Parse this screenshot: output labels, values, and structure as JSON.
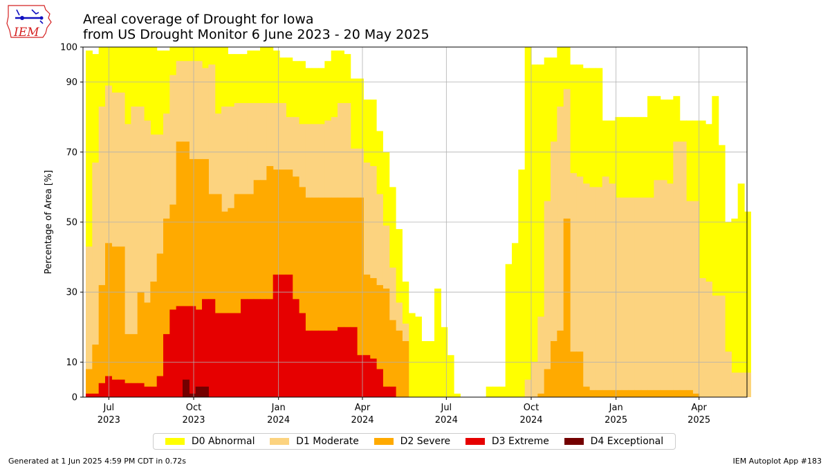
{
  "title": {
    "line1": "Areal coverage of Drought for Iowa",
    "line2": "from US Drought Monitor 6 June 2023 - 20 May 2025"
  },
  "logo": {
    "text": "IEM"
  },
  "footer": {
    "left": "Generated at 1 Jun 2025 4:59 PM CDT in 0.72s",
    "right": "IEM Autoplot App #183"
  },
  "colors": {
    "D0": "#FFFF00",
    "D1": "#FCD37F",
    "D2": "#FFAA00",
    "D3": "#E60000",
    "D4": "#730000",
    "grid": "#b0b0b0"
  },
  "chart_data": {
    "type": "area",
    "stacked_cumulative": true,
    "ylabel": "Percentage of Area [%]",
    "ylim": [
      0,
      100
    ],
    "yticks": [
      0,
      10,
      30,
      50,
      70,
      90,
      100
    ],
    "xlim": [
      "2023-06-03",
      "2025-05-23"
    ],
    "xticks": [
      {
        "date": "2023-07-01",
        "label1": "Jul",
        "label2": "2023"
      },
      {
        "date": "2023-10-01",
        "label1": "Oct",
        "label2": "2023"
      },
      {
        "date": "2024-01-01",
        "label1": "Jan",
        "label2": "2024"
      },
      {
        "date": "2024-04-01",
        "label1": "Apr",
        "label2": "2024"
      },
      {
        "date": "2024-07-01",
        "label1": "Jul",
        "label2": "2024"
      },
      {
        "date": "2024-10-01",
        "label1": "Oct",
        "label2": "2024"
      },
      {
        "date": "2025-01-01",
        "label1": "Jan",
        "label2": "2025"
      },
      {
        "date": "2025-04-01",
        "label1": "Apr",
        "label2": "2025"
      }
    ],
    "grid": true,
    "legend_position": "bottom",
    "week_dates": [
      "2023-06-06",
      "2023-06-13",
      "2023-06-20",
      "2023-06-27",
      "2023-07-04",
      "2023-07-11",
      "2023-07-18",
      "2023-07-25",
      "2023-08-01",
      "2023-08-08",
      "2023-08-15",
      "2023-08-22",
      "2023-08-29",
      "2023-09-05",
      "2023-09-12",
      "2023-09-19",
      "2023-09-26",
      "2023-10-03",
      "2023-10-10",
      "2023-10-17",
      "2023-10-24",
      "2023-10-31",
      "2023-11-07",
      "2023-11-14",
      "2023-11-21",
      "2023-11-28",
      "2023-12-05",
      "2023-12-12",
      "2023-12-19",
      "2023-12-26",
      "2024-01-02",
      "2024-01-09",
      "2024-01-16",
      "2024-01-23",
      "2024-01-30",
      "2024-02-06",
      "2024-02-13",
      "2024-02-20",
      "2024-02-27",
      "2024-03-05",
      "2024-03-12",
      "2024-03-19",
      "2024-03-26",
      "2024-04-02",
      "2024-04-09",
      "2024-04-16",
      "2024-04-23",
      "2024-04-30",
      "2024-05-07",
      "2024-05-14",
      "2024-05-21",
      "2024-05-28",
      "2024-06-04",
      "2024-06-11",
      "2024-06-18",
      "2024-06-25",
      "2024-07-02",
      "2024-07-09",
      "2024-07-16",
      "2024-07-23",
      "2024-07-30",
      "2024-08-06",
      "2024-08-13",
      "2024-08-20",
      "2024-08-27",
      "2024-09-03",
      "2024-09-10",
      "2024-09-17",
      "2024-09-24",
      "2024-10-01",
      "2024-10-08",
      "2024-10-15",
      "2024-10-22",
      "2024-10-29",
      "2024-11-05",
      "2024-11-12",
      "2024-11-19",
      "2024-11-26",
      "2024-12-03",
      "2024-12-10",
      "2024-12-17",
      "2024-12-24",
      "2024-12-31",
      "2025-01-07",
      "2025-01-14",
      "2025-01-21",
      "2025-01-28",
      "2025-02-04",
      "2025-02-11",
      "2025-02-18",
      "2025-02-25",
      "2025-03-04",
      "2025-03-11",
      "2025-03-18",
      "2025-03-25",
      "2025-04-01",
      "2025-04-08",
      "2025-04-15",
      "2025-04-22",
      "2025-04-29",
      "2025-05-06",
      "2025-05-13",
      "2025-05-20"
    ],
    "series": [
      {
        "name": "D0 Abnormal",
        "key": "D0",
        "values": [
          99,
          98,
          100,
          100,
          100,
          100,
          100,
          100,
          100,
          100,
          100,
          99,
          99,
          100,
          100,
          100,
          100,
          100,
          100,
          100,
          100,
          100,
          98,
          98,
          98,
          99,
          99,
          100,
          100,
          99,
          97,
          97,
          96,
          96,
          94,
          94,
          94,
          96,
          99,
          99,
          98,
          91,
          91,
          85,
          85,
          76,
          70,
          60,
          48,
          33,
          24,
          23,
          16,
          16,
          31,
          20,
          12,
          1,
          0,
          0,
          0,
          0,
          3,
          3,
          3,
          38,
          44,
          65,
          100,
          95,
          95,
          97,
          97,
          100,
          100,
          95,
          95,
          94,
          94,
          94,
          79,
          79,
          80,
          80,
          80,
          80,
          80,
          86,
          86,
          85,
          85,
          86,
          79,
          79,
          79,
          79,
          78,
          86,
          72,
          50,
          51,
          61,
          53
        ]
      },
      {
        "name": "D1 Moderate",
        "key": "D1",
        "values": [
          43,
          67,
          83,
          89,
          87,
          87,
          78,
          83,
          83,
          79,
          75,
          75,
          81,
          92,
          96,
          96,
          96,
          96,
          94,
          95,
          81,
          83,
          83,
          84,
          84,
          84,
          84,
          84,
          84,
          84,
          84,
          80,
          80,
          78,
          78,
          78,
          78,
          79,
          80,
          84,
          84,
          71,
          71,
          67,
          66,
          58,
          49,
          37,
          27,
          21,
          0,
          0,
          0,
          0,
          0,
          0,
          0,
          0,
          0,
          0,
          0,
          0,
          0,
          0,
          0,
          0,
          0,
          0,
          5,
          10,
          23,
          56,
          73,
          83,
          88,
          64,
          63,
          61,
          60,
          60,
          63,
          61,
          57,
          57,
          57,
          57,
          57,
          57,
          62,
          62,
          61,
          73,
          73,
          56,
          56,
          34,
          33,
          29,
          29,
          13,
          7,
          7,
          7
        ]
      },
      {
        "name": "D2 Severe",
        "key": "D2",
        "values": [
          8,
          15,
          32,
          44,
          43,
          43,
          18,
          18,
          30,
          27,
          33,
          41,
          51,
          55,
          73,
          73,
          68,
          68,
          68,
          58,
          58,
          53,
          54,
          58,
          58,
          58,
          62,
          62,
          66,
          65,
          65,
          65,
          63,
          60,
          57,
          57,
          57,
          57,
          57,
          57,
          57,
          57,
          57,
          35,
          34,
          32,
          31,
          22,
          19,
          16,
          0,
          0,
          0,
          0,
          0,
          0,
          0,
          0,
          0,
          0,
          0,
          0,
          0,
          0,
          0,
          0,
          0,
          0,
          0,
          0,
          1,
          8,
          16,
          19,
          51,
          13,
          13,
          3,
          2,
          2,
          2,
          2,
          2,
          2,
          2,
          2,
          2,
          2,
          2,
          2,
          2,
          2,
          2,
          2,
          1,
          0,
          0,
          0,
          0,
          0,
          0,
          0,
          0
        ]
      },
      {
        "name": "D3 Extreme",
        "key": "D3",
        "values": [
          1,
          1,
          4,
          6,
          5,
          5,
          4,
          4,
          4,
          3,
          3,
          6,
          18,
          25,
          26,
          26,
          26,
          25,
          28,
          28,
          24,
          24,
          24,
          24,
          28,
          28,
          28,
          28,
          28,
          35,
          35,
          35,
          28,
          24,
          19,
          19,
          19,
          19,
          19,
          20,
          20,
          20,
          12,
          12,
          11,
          8,
          3,
          3,
          0,
          0,
          0,
          0,
          0,
          0,
          0,
          0,
          0,
          0,
          0,
          0,
          0,
          0,
          0,
          0,
          0,
          0,
          0,
          0,
          0,
          0,
          0,
          0,
          0,
          0,
          0,
          0,
          0,
          0,
          0,
          0,
          0,
          0,
          0,
          0,
          0,
          0,
          0,
          0,
          0,
          0,
          0,
          0,
          0,
          0,
          0,
          0,
          0,
          0,
          0,
          0,
          0,
          0,
          0
        ]
      },
      {
        "name": "D4 Exceptional",
        "key": "D4",
        "values": [
          0,
          0,
          0,
          0,
          0,
          0,
          0,
          0,
          0,
          0,
          0,
          0,
          0,
          0,
          0,
          5,
          1,
          3,
          3,
          0,
          0,
          0,
          0,
          0,
          0,
          0,
          0,
          0,
          0,
          0,
          0,
          0,
          0,
          0,
          0,
          0,
          0,
          0,
          0,
          0,
          0,
          0,
          0,
          0,
          0,
          0,
          0,
          0,
          0,
          0,
          0,
          0,
          0,
          0,
          0,
          0,
          0,
          0,
          0,
          0,
          0,
          0,
          0,
          0,
          0,
          0,
          0,
          0,
          0,
          0,
          0,
          0,
          0,
          0,
          0,
          0,
          0,
          0,
          0,
          0,
          0,
          0,
          0,
          0,
          0,
          0,
          0,
          0,
          0,
          0,
          0,
          0,
          0,
          0,
          0,
          0,
          0,
          0,
          0,
          0,
          0,
          0,
          0
        ]
      }
    ]
  }
}
